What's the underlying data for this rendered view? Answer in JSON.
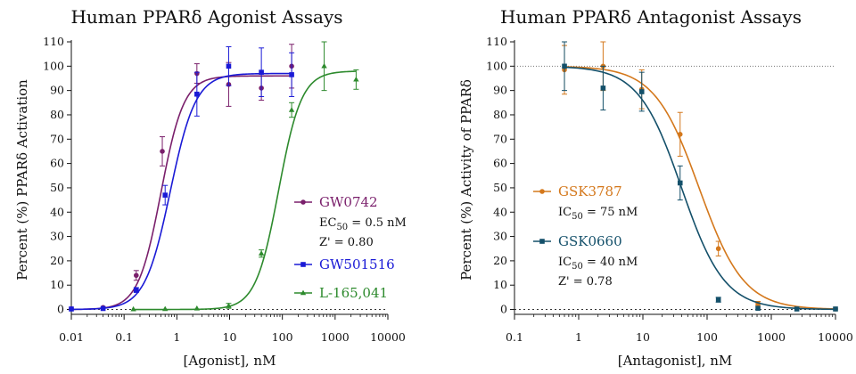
{
  "chart_data": [
    {
      "type": "scatter",
      "title": "Human PPARδ Agonist Assays",
      "xlabel": "[Agonist], nM",
      "ylabel": "Percent (%) PPARδ Activation",
      "xscale": "log",
      "xlim": [
        0.01,
        10000
      ],
      "ylim": [
        -2,
        110
      ],
      "x_ticks": [
        "0.01",
        "0.1",
        "1",
        "10",
        "100",
        "1000",
        "10000"
      ],
      "y_ticks": [
        0,
        10,
        20,
        30,
        40,
        50,
        60,
        70,
        80,
        90,
        100,
        110
      ],
      "baseline": 0,
      "legend_position": "center-right",
      "series": [
        {
          "name": "GW0742",
          "color": "#7a1f6b",
          "marker": "circle",
          "fit": {
            "bottom": 0,
            "top": 96,
            "ec50": 0.5,
            "hill": 2.0
          },
          "x": [
            0.01,
            0.04,
            0.17,
            0.53,
            2.4,
            9.6,
            40,
            150
          ],
          "y": [
            0.3,
            0.8,
            14,
            65,
            97,
            92.5,
            91,
            100
          ],
          "err": [
            0.5,
            0.5,
            2,
            6,
            4,
            9,
            5,
            9
          ],
          "annotation": [
            "EC50 = 0.5 nM",
            "Z' = 0.80"
          ]
        },
        {
          "name": "GW501516",
          "color": "#1a1ad6",
          "marker": "square",
          "fit": {
            "bottom": 0,
            "top": 97,
            "ec50": 0.75,
            "hill": 1.8
          },
          "x": [
            0.01,
            0.04,
            0.17,
            0.6,
            2.4,
            9.6,
            40,
            150
          ],
          "y": [
            0.2,
            0.4,
            8,
            47,
            88.5,
            100,
            97.5,
            96.5
          ],
          "err": [
            0.5,
            0.5,
            1,
            4,
            9,
            8,
            10,
            9
          ]
        },
        {
          "name": "L-165,041",
          "color": "#2d8a2d",
          "marker": "triangle",
          "fit": {
            "bottom": 0,
            "top": 98,
            "ec50": 85,
            "hill": 2.0
          },
          "x": [
            0.15,
            0.6,
            2.4,
            9.6,
            40,
            150,
            620,
            2500
          ],
          "y": [
            0.1,
            0.2,
            0.4,
            1.5,
            23,
            82,
            100,
            94.5
          ],
          "err": [
            0.4,
            0.4,
            0.5,
            1,
            1.5,
            3,
            10,
            4
          ]
        }
      ]
    },
    {
      "type": "scatter",
      "title": "Human PPARδ Antagonist Assays",
      "xlabel": "[Antagonist], nM",
      "ylabel": "Percent (%) Activity of PPARδ",
      "xscale": "log",
      "xlim": [
        0.1,
        10000
      ],
      "ylim": [
        -2,
        110
      ],
      "x_ticks": [
        "0.1",
        "1",
        "10",
        "100",
        "1000",
        "10000"
      ],
      "y_ticks": [
        0,
        10,
        20,
        30,
        40,
        50,
        60,
        70,
        80,
        90,
        100,
        110
      ],
      "baseline": 0,
      "reference_line": 100,
      "legend_position": "center-left",
      "series": [
        {
          "name": "GSK3787",
          "color": "#d4781c",
          "marker": "circle",
          "fit": {
            "bottom": 0,
            "top": 100,
            "ec50": 75,
            "hill": 1.25
          },
          "x": [
            0.6,
            2.4,
            9.6,
            38,
            150,
            620,
            2500,
            10000
          ],
          "y": [
            98.5,
            100,
            90.5,
            72,
            25,
            2.5,
            0.3,
            0.2
          ],
          "err": [
            10,
            10,
            8,
            9,
            3,
            0.8,
            0.5,
            0.5
          ],
          "annotation": [
            "IC50 = 75 nM"
          ]
        },
        {
          "name": "GSK0660",
          "color": "#14506a",
          "marker": "square",
          "fit": {
            "bottom": 0,
            "top": 100,
            "ec50": 40,
            "hill": 1.3
          },
          "x": [
            0.6,
            2.4,
            9.6,
            38,
            150,
            620,
            2500,
            10000
          ],
          "y": [
            100,
            91,
            89.5,
            52,
            4,
            0.5,
            0.2,
            0.2
          ],
          "err": [
            10,
            9,
            8,
            7,
            1,
            0.5,
            0.5,
            0.5
          ],
          "annotation": [
            "IC50 = 40 nM",
            "Z' = 0.78"
          ]
        }
      ]
    }
  ]
}
